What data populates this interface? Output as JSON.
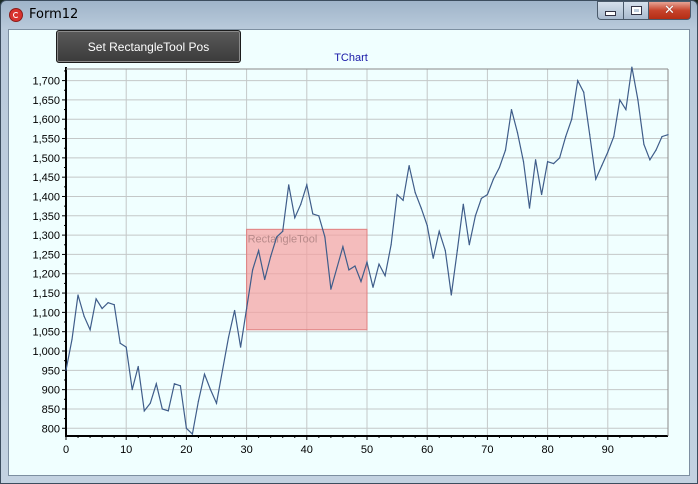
{
  "window": {
    "title": "Form12",
    "minimize_icon": "minimize-icon",
    "maximize_icon": "maximize-icon",
    "close_icon": "close-icon"
  },
  "toolbar": {
    "set_rectangle_label": "Set RectangleTool Pos"
  },
  "rectangle_tool": {
    "label": "RectangleTool",
    "x_range": [
      30,
      50
    ],
    "y_range": [
      1055,
      1315
    ],
    "fill": "#f5a0a0",
    "border": "#e08080"
  },
  "chart_data": {
    "type": "line",
    "title": "TChart",
    "xlabel": "",
    "ylabel": "",
    "xlim": [
      0,
      100
    ],
    "ylim": [
      780,
      1730
    ],
    "x_ticks": [
      0,
      10,
      20,
      30,
      40,
      50,
      60,
      70,
      80,
      90
    ],
    "y_ticks": [
      800,
      850,
      900,
      950,
      1000,
      1050,
      1100,
      1150,
      1200,
      1250,
      1300,
      1350,
      1400,
      1450,
      1500,
      1550,
      1600,
      1650,
      1700
    ],
    "y_tick_labels": [
      "800",
      "850",
      "900",
      "950",
      "1,000",
      "1,050",
      "1,100",
      "1,150",
      "1,200",
      "1,250",
      "1,300",
      "1,350",
      "1,400",
      "1,450",
      "1,500",
      "1,550",
      "1,600",
      "1,650",
      "1,700"
    ],
    "grid": true,
    "legend": "none",
    "series": [
      {
        "color": "#3f5d8a",
        "x": [
          0,
          1,
          2,
          3,
          4,
          5,
          6,
          7,
          8,
          9,
          10,
          11,
          12,
          13,
          14,
          15,
          16,
          17,
          18,
          19,
          20,
          21,
          22,
          23,
          24,
          25,
          26,
          27,
          28,
          29,
          30,
          31,
          32,
          33,
          34,
          35,
          36,
          37,
          38,
          39,
          40,
          41,
          42,
          43,
          44,
          45,
          46,
          47,
          48,
          49,
          50,
          51,
          52,
          53,
          54,
          55,
          56,
          57,
          58,
          59,
          60,
          61,
          62,
          63,
          64,
          65,
          66,
          67,
          68,
          69,
          70,
          71,
          72,
          73,
          74,
          75,
          76,
          77,
          78,
          79,
          80,
          81,
          82,
          83,
          84,
          85,
          86,
          87,
          88,
          89,
          90,
          91,
          92,
          93,
          94,
          95,
          96,
          97,
          98,
          99,
          100
        ],
        "values": [
          950,
          1030,
          1145,
          1090,
          1055,
          1135,
          1110,
          1125,
          1120,
          1020,
          1010,
          900,
          960,
          845,
          865,
          915,
          850,
          845,
          915,
          910,
          800,
          785,
          870,
          940,
          900,
          865,
          950,
          1035,
          1105,
          1010,
          1110,
          1210,
          1260,
          1185,
          1245,
          1295,
          1310,
          1430,
          1345,
          1380,
          1430,
          1355,
          1350,
          1295,
          1160,
          1215,
          1270,
          1210,
          1220,
          1180,
          1230,
          1165,
          1225,
          1195,
          1275,
          1405,
          1390,
          1480,
          1410,
          1370,
          1325,
          1240,
          1310,
          1260,
          1145,
          1260,
          1380,
          1275,
          1350,
          1395,
          1405,
          1445,
          1475,
          1520,
          1625,
          1565,
          1490,
          1370,
          1495,
          1405,
          1490,
          1485,
          1500,
          1555,
          1600,
          1700,
          1670,
          1560,
          1445,
          1480,
          1515,
          1555,
          1650,
          1625,
          1735,
          1650,
          1535,
          1495,
          1520,
          1555,
          1560
        ]
      }
    ]
  }
}
